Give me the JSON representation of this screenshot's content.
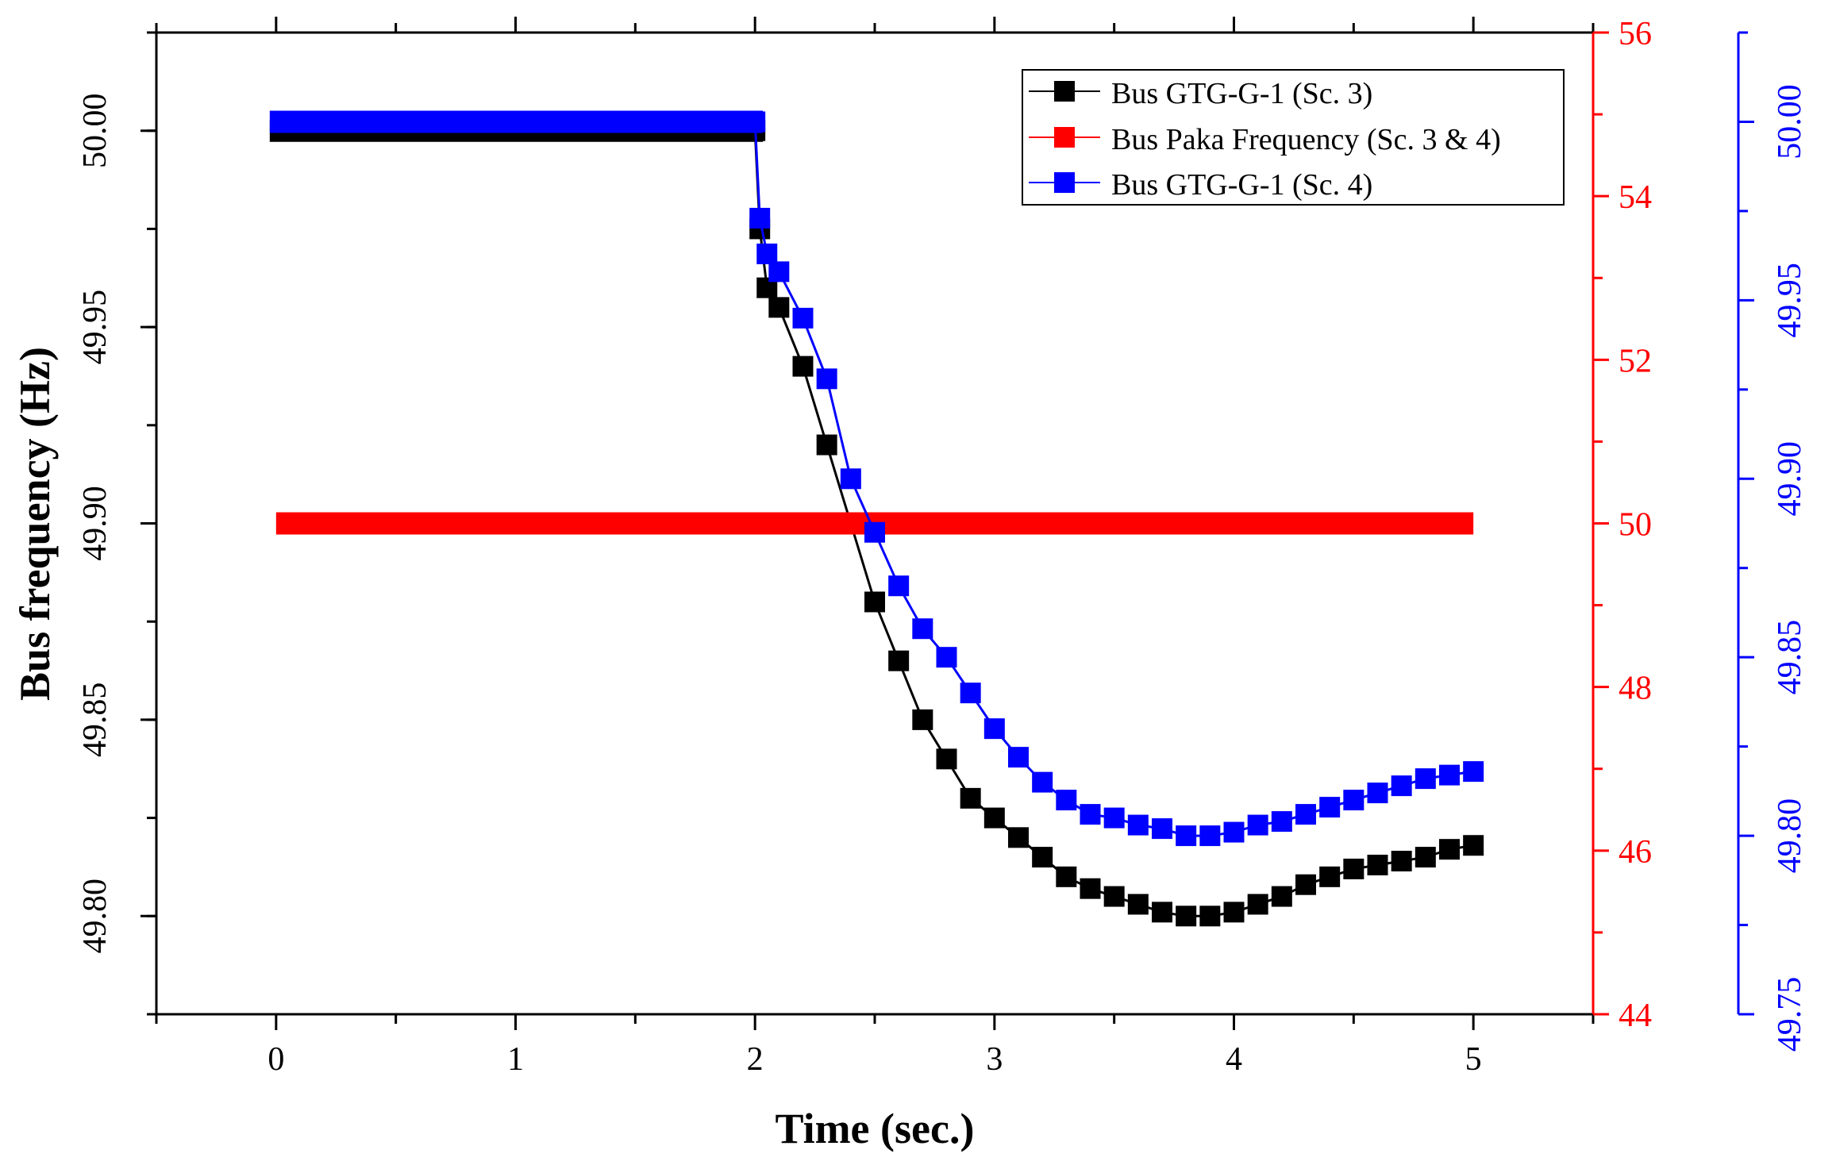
{
  "chart_data": {
    "type": "line",
    "title": "",
    "xlabel": "Time (sec.)",
    "ylabel": "Bus frequency (Hz)",
    "xlim": [
      -0.5,
      5.5
    ],
    "x_ticks": [
      "0",
      "1",
      "2",
      "3",
      "4",
      "5"
    ],
    "axes": {
      "left": {
        "label": "Bus frequency (Hz)",
        "ylim": [
          49.775,
          50.025
        ],
        "ticks": [
          "49.80",
          "49.85",
          "49.90",
          "49.95",
          "50.00"
        ],
        "color": "#000000"
      },
      "right1": {
        "label": "",
        "ylim": [
          44,
          56
        ],
        "ticks": [
          "44",
          "46",
          "48",
          "50",
          "52",
          "54",
          "56"
        ],
        "color": "#ff0000"
      },
      "right2": {
        "label": "",
        "ylim": [
          49.75,
          50.025
        ],
        "ticks": [
          "49.75",
          "49.80",
          "49.85",
          "49.90",
          "49.95",
          "50.00"
        ],
        "color": "#0000ff"
      }
    },
    "legend_position": "top-right",
    "series": [
      {
        "name": "Bus GTG-G-1 (Sc. 3)",
        "axis": "left",
        "color": "#000000",
        "x": [
          0,
          0.5,
          1,
          1.5,
          2,
          2.02,
          2.05,
          2.1,
          2.2,
          2.3,
          2.4,
          2.5,
          2.6,
          2.7,
          2.8,
          2.9,
          3.0,
          3.1,
          3.2,
          3.3,
          3.4,
          3.5,
          3.6,
          3.7,
          3.8,
          3.9,
          4.0,
          4.1,
          4.2,
          4.3,
          4.4,
          4.5,
          4.6,
          4.7,
          4.8,
          4.9,
          5.0
        ],
        "values": [
          50.0,
          50.0,
          50.0,
          50.0,
          50.0,
          49.975,
          49.96,
          49.955,
          49.94,
          49.92,
          49.9,
          49.88,
          49.865,
          49.85,
          49.84,
          49.83,
          49.825,
          49.82,
          49.815,
          49.81,
          49.807,
          49.805,
          49.803,
          49.801,
          49.8,
          49.8,
          49.801,
          49.803,
          49.805,
          49.808,
          49.81,
          49.812,
          49.813,
          49.814,
          49.815,
          49.817,
          49.818
        ]
      },
      {
        "name": "Bus Paka Frequency (Sc. 3 & 4)",
        "axis": "right1",
        "color": "#ff0000",
        "x": [
          0,
          5
        ],
        "values": [
          50,
          50
        ]
      },
      {
        "name": "Bus GTG-G-1 (Sc. 4)",
        "axis": "right2",
        "color": "#0000ff",
        "x": [
          0,
          0.5,
          1,
          1.5,
          2,
          2.02,
          2.05,
          2.1,
          2.2,
          2.3,
          2.4,
          2.5,
          2.6,
          2.7,
          2.8,
          2.9,
          3.0,
          3.1,
          3.2,
          3.3,
          3.4,
          3.5,
          3.6,
          3.7,
          3.8,
          3.9,
          4.0,
          4.1,
          4.2,
          4.3,
          4.4,
          4.5,
          4.6,
          4.7,
          4.8,
          4.9,
          5.0
        ],
        "values": [
          50.0,
          50.0,
          50.0,
          50.0,
          50.0,
          49.973,
          49.963,
          49.958,
          49.945,
          49.928,
          49.9,
          49.885,
          49.87,
          49.858,
          49.85,
          49.84,
          49.83,
          49.822,
          49.815,
          49.81,
          49.806,
          49.805,
          49.803,
          49.802,
          49.8,
          49.8,
          49.801,
          49.803,
          49.804,
          49.806,
          49.808,
          49.81,
          49.812,
          49.814,
          49.816,
          49.817,
          49.818
        ]
      }
    ]
  }
}
